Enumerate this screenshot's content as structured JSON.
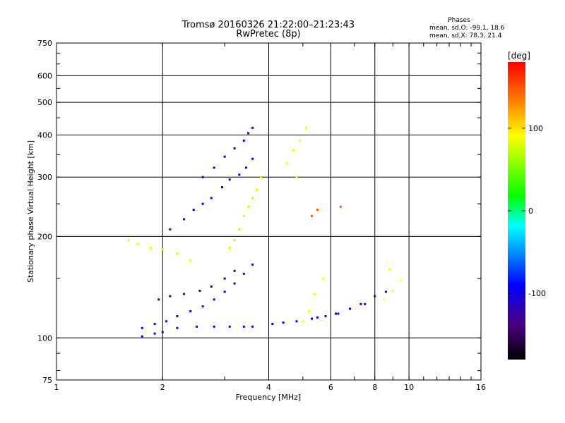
{
  "chart_data": {
    "type": "scatter",
    "title": "Tromsø 20160326 21:22:00–21:23:43",
    "subtitle": "RwPretec (8p)",
    "xlabel": "Frequency [MHz]",
    "ylabel": "Stationary phase Virtual Height [km]",
    "x_scale": "log",
    "y_scale": "log",
    "xlim": [
      1,
      16
    ],
    "ylim": [
      75,
      750
    ],
    "x_ticks": [
      1,
      2,
      4,
      6,
      8,
      10,
      16
    ],
    "y_ticks": [
      75,
      100,
      200,
      300,
      400,
      500,
      600,
      750
    ],
    "x_grid": [
      2,
      4,
      6,
      8,
      10
    ],
    "y_grid": [
      100,
      200,
      300,
      400,
      500,
      600
    ],
    "grid": true,
    "phases_box": {
      "heading": "Phases",
      "line1": "mean, sd,O: -99.1, 18.6",
      "line2": "mean, sd,X:  78.3, 21.4"
    },
    "colorbar": {
      "label": "[deg]",
      "range": [
        -180,
        180
      ],
      "ticks": [
        {
          "value": 100,
          "label": "100"
        },
        {
          "value": 0,
          "label": "0"
        },
        {
          "value": -100,
          "label": "-100"
        }
      ]
    },
    "series": [
      {
        "phase": -100,
        "points": [
          [
            1.75,
            101
          ],
          [
            1.9,
            103
          ],
          [
            2.0,
            104
          ],
          [
            2.2,
            107
          ],
          [
            2.5,
            108
          ],
          [
            2.8,
            108
          ],
          [
            3.1,
            108
          ],
          [
            3.4,
            108
          ],
          [
            3.6,
            108
          ],
          [
            4.1,
            110
          ],
          [
            4.4,
            111
          ],
          [
            4.8,
            112
          ],
          [
            5.3,
            114
          ],
          [
            5.8,
            116
          ],
          [
            6.3,
            118
          ],
          [
            6.8,
            122
          ],
          [
            7.3,
            126
          ],
          [
            8.0,
            133
          ],
          [
            8.6,
            137
          ]
        ]
      },
      {
        "phase": -110,
        "points": [
          [
            1.75,
            107
          ],
          [
            1.9,
            110
          ],
          [
            2.05,
            112
          ],
          [
            2.2,
            116
          ],
          [
            2.4,
            120
          ],
          [
            2.6,
            124
          ],
          [
            2.8,
            130
          ],
          [
            3.0,
            137
          ],
          [
            3.2,
            145
          ],
          [
            3.4,
            155
          ],
          [
            3.6,
            165
          ]
        ]
      },
      {
        "phase": -105,
        "points": [
          [
            1.95,
            130
          ],
          [
            2.1,
            133
          ],
          [
            2.3,
            135
          ],
          [
            2.55,
            138
          ],
          [
            2.75,
            142
          ],
          [
            3.0,
            150
          ],
          [
            3.2,
            158
          ]
        ]
      },
      {
        "phase": -90,
        "points": [
          [
            2.1,
            210
          ],
          [
            2.3,
            225
          ],
          [
            2.45,
            240
          ],
          [
            2.6,
            250
          ],
          [
            2.75,
            260
          ],
          [
            2.95,
            280
          ],
          [
            3.1,
            295
          ],
          [
            3.3,
            305
          ],
          [
            3.45,
            320
          ],
          [
            3.6,
            340
          ]
        ]
      },
      {
        "phase": -100,
        "points": [
          [
            2.6,
            300
          ],
          [
            2.8,
            320
          ],
          [
            3.0,
            345
          ],
          [
            3.2,
            365
          ],
          [
            3.4,
            385
          ],
          [
            3.5,
            405
          ],
          [
            3.6,
            420
          ]
        ]
      },
      {
        "phase": 80,
        "points": [
          [
            1.6,
            195
          ],
          [
            1.7,
            190
          ],
          [
            1.85,
            185
          ],
          [
            2.0,
            183
          ],
          [
            2.2,
            178
          ],
          [
            2.4,
            170
          ]
        ]
      },
      {
        "phase": 75,
        "points": [
          [
            3.1,
            185
          ],
          [
            3.2,
            195
          ],
          [
            3.3,
            210
          ],
          [
            3.4,
            230
          ],
          [
            3.5,
            245
          ],
          [
            3.6,
            260
          ],
          [
            3.7,
            275
          ],
          [
            3.8,
            300
          ]
        ]
      },
      {
        "phase": 85,
        "points": [
          [
            4.5,
            330
          ],
          [
            4.7,
            360
          ],
          [
            4.9,
            385
          ],
          [
            5.1,
            420
          ],
          [
            4.8,
            300
          ]
        ]
      },
      {
        "phase": -95,
        "points": [
          [
            5.5,
            115
          ],
          [
            6.2,
            118
          ],
          [
            6.8,
            122
          ],
          [
            7.5,
            126
          ]
        ]
      },
      {
        "phase": 90,
        "points": [
          [
            5.0,
            112
          ],
          [
            5.2,
            120
          ],
          [
            5.4,
            135
          ],
          [
            5.7,
            150
          ],
          [
            8.5,
            130
          ],
          [
            9.0,
            138
          ],
          [
            9.5,
            148
          ],
          [
            8.8,
            160
          ]
        ]
      },
      {
        "phase": 150,
        "points": [
          [
            5.5,
            240
          ],
          [
            6.4,
            245
          ],
          [
            5.3,
            230
          ]
        ]
      }
    ]
  }
}
